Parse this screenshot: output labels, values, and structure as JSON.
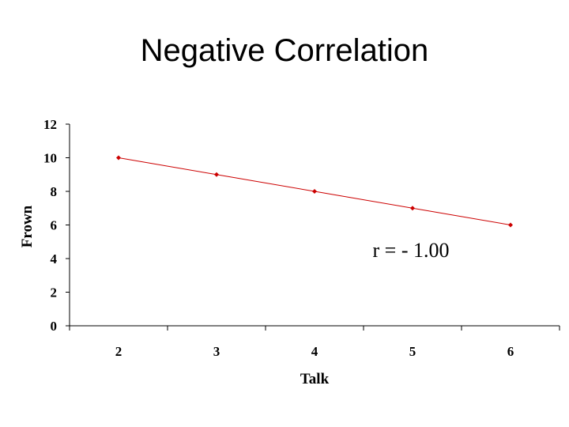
{
  "slide": {
    "title": "Negative Correlation"
  },
  "chart_data": {
    "type": "line",
    "title": "Negative Correlation",
    "xlabel": "Talk",
    "ylabel": "Frown",
    "categories": [
      "2",
      "3",
      "4",
      "5",
      "6"
    ],
    "x": [
      2,
      3,
      4,
      5,
      6
    ],
    "series": [
      {
        "values": [
          10,
          9,
          8,
          7,
          6
        ],
        "color": "#cc0000"
      }
    ],
    "ylim": [
      0,
      12
    ],
    "yticks": [
      "0",
      "2",
      "4",
      "6",
      "8",
      "10",
      "12"
    ],
    "grid": false,
    "legend": "none",
    "annotation": "r = - 1.00"
  }
}
